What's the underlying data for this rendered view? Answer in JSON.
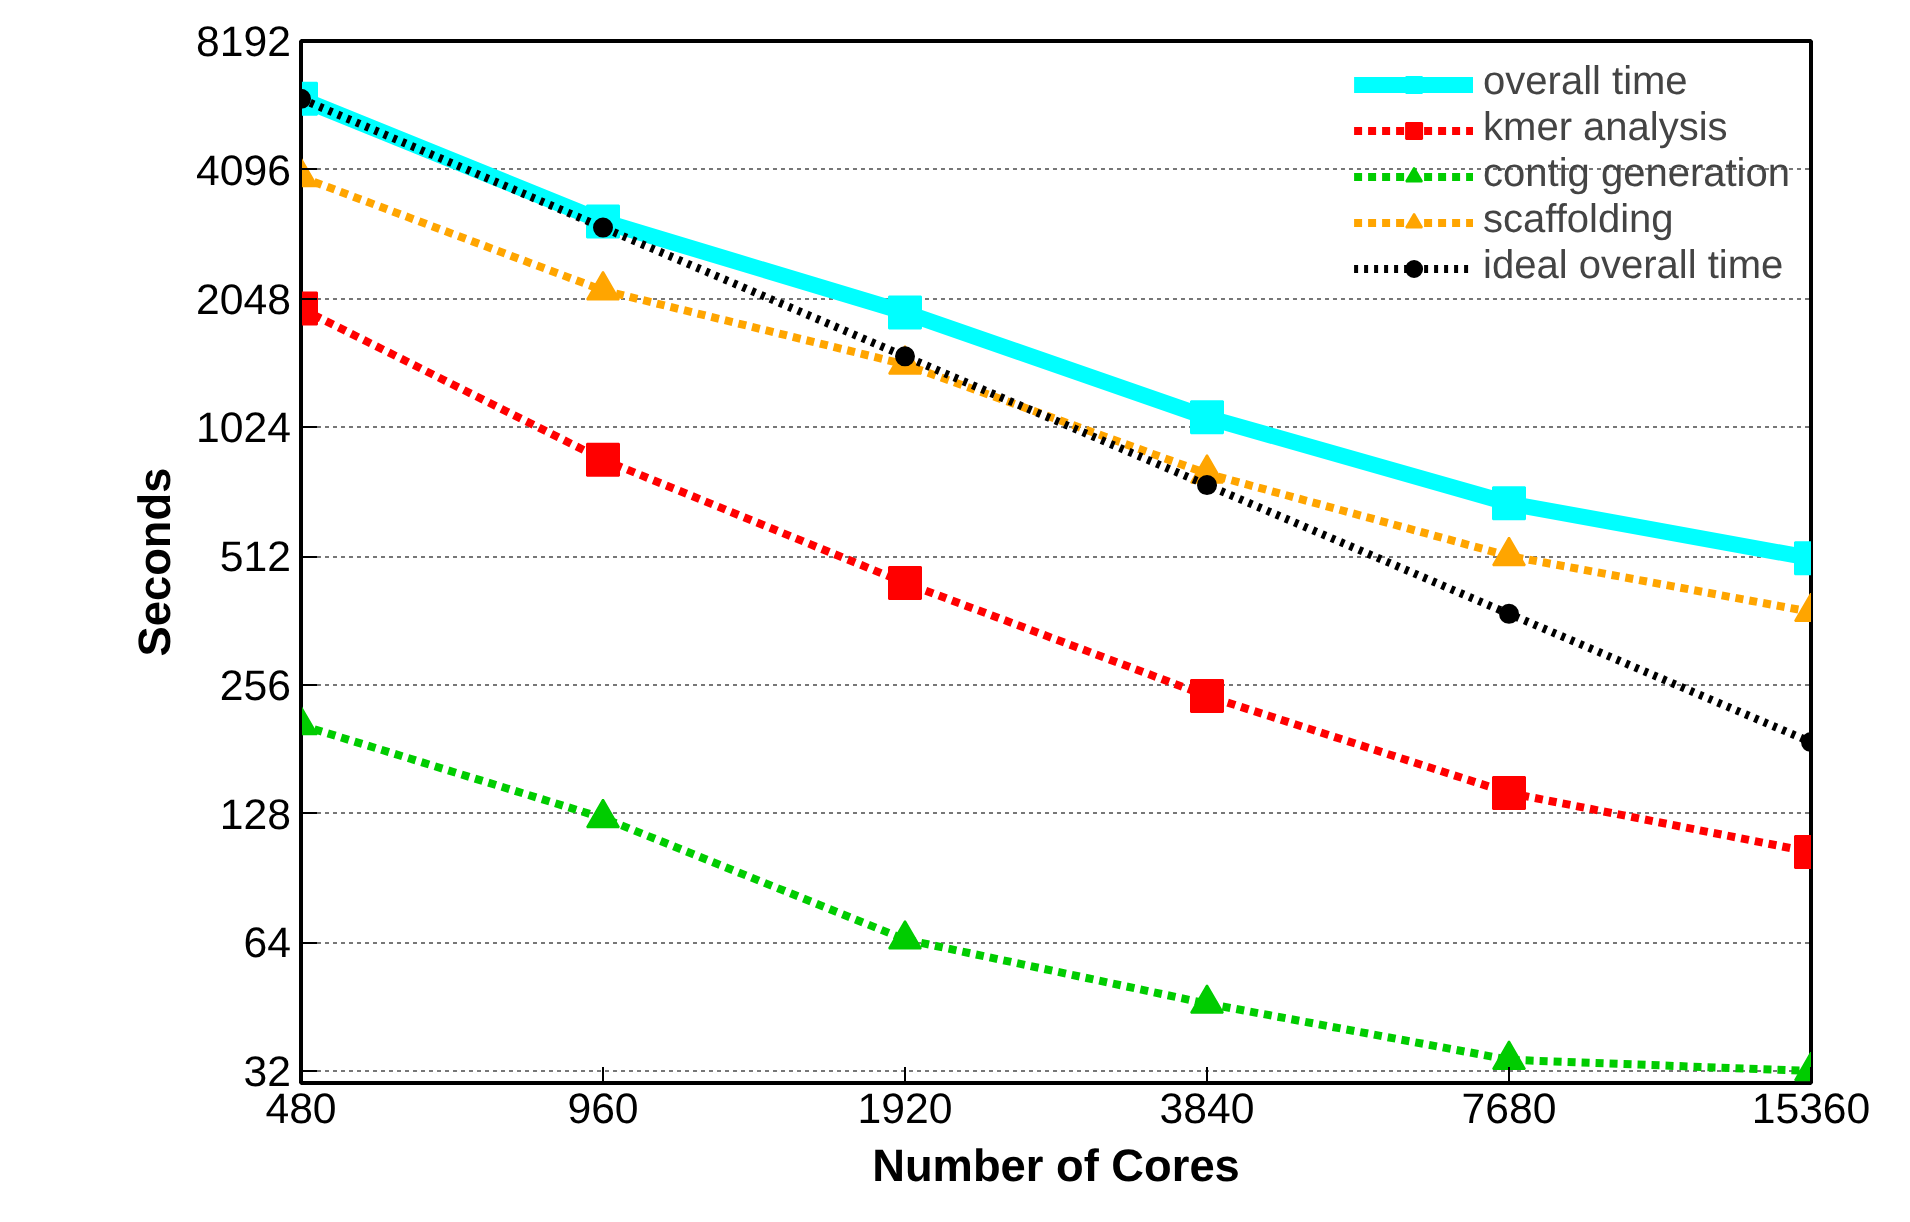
{
  "chart_data": {
    "type": "line",
    "xlabel": "Number of Cores",
    "ylabel": "Seconds",
    "log": "xy",
    "grid": "y",
    "legend": "top right",
    "x": [
      480,
      960,
      1920,
      3840,
      7680,
      15360
    ],
    "xlim": [
      480,
      15360
    ],
    "xticks": [
      480,
      960,
      1920,
      3840,
      7680,
      15360
    ],
    "ylim": [
      30,
      8192
    ],
    "yticks": [
      32,
      64,
      128,
      256,
      512,
      1024,
      2048,
      4096,
      8192
    ],
    "series": [
      {
        "name": "overall time",
        "color": "#00ffff",
        "marker": "square",
        "line_style": "solid",
        "values": [
          6000,
          3100,
          1900,
          1080,
          680,
          506
        ]
      },
      {
        "name": "kmer analysis",
        "color": "#ff0000",
        "marker": "square",
        "line_style": "dashed",
        "values": [
          1940,
          860,
          443,
          241,
          143,
          104
        ]
      },
      {
        "name": "contig generation",
        "color": "#00cc00",
        "marker": "triangle",
        "line_style": "dashed",
        "values": [
          206,
          125,
          65,
          46,
          34,
          32
        ]
      },
      {
        "name": "scaffolding",
        "color": "#ffa500",
        "marker": "triangle",
        "line_style": "dashed",
        "values": [
          3940,
          2140,
          1436,
          798,
          512,
          379
        ]
      },
      {
        "name": "ideal overall time",
        "color": "#000000",
        "marker": "circle",
        "line_style": "dotted",
        "values": [
          6000,
          3000,
          1500,
          750,
          375,
          188
        ]
      }
    ]
  }
}
